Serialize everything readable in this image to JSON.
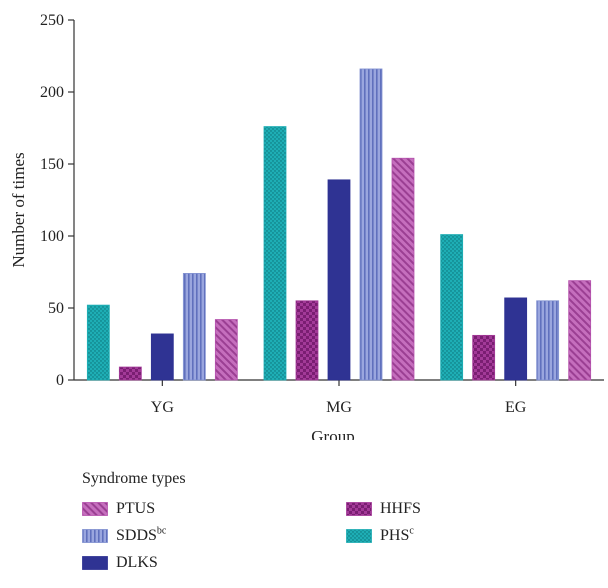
{
  "chart_data": {
    "type": "bar",
    "categories": [
      "YG",
      "MG",
      "EG"
    ],
    "series": [
      {
        "name": "PHS",
        "name_sup": "c",
        "color": "#1eaeb5",
        "pattern": "dots",
        "values": [
          52,
          176,
          101
        ]
      },
      {
        "name": "HHFS",
        "name_sup": "",
        "color": "#a33a98",
        "pattern": "checker",
        "values": [
          9,
          55,
          31
        ]
      },
      {
        "name": "DLKS",
        "name_sup": "",
        "color": "#2f3393",
        "pattern": "solid",
        "values": [
          32,
          139,
          57
        ]
      },
      {
        "name": "SDDS",
        "name_sup": "bc",
        "color": "#7f8fcf",
        "pattern": "vertical",
        "values": [
          74,
          216,
          55
        ]
      },
      {
        "name": "PTUS",
        "name_sup": "",
        "color": "#b552ad",
        "pattern": "diagonal",
        "values": [
          42,
          154,
          69
        ]
      }
    ],
    "xlabel": "Group",
    "ylabel": "Number of times",
    "ylim": [
      0,
      250
    ],
    "yticks": [
      "0",
      "50",
      "100",
      "150",
      "200",
      "250"
    ],
    "grid": false,
    "legend": {
      "title": "Syndrome types",
      "placement": "bottom",
      "order": [
        "PTUS",
        "HHFS",
        "SDDS",
        "PHS",
        "DLKS"
      ]
    }
  }
}
